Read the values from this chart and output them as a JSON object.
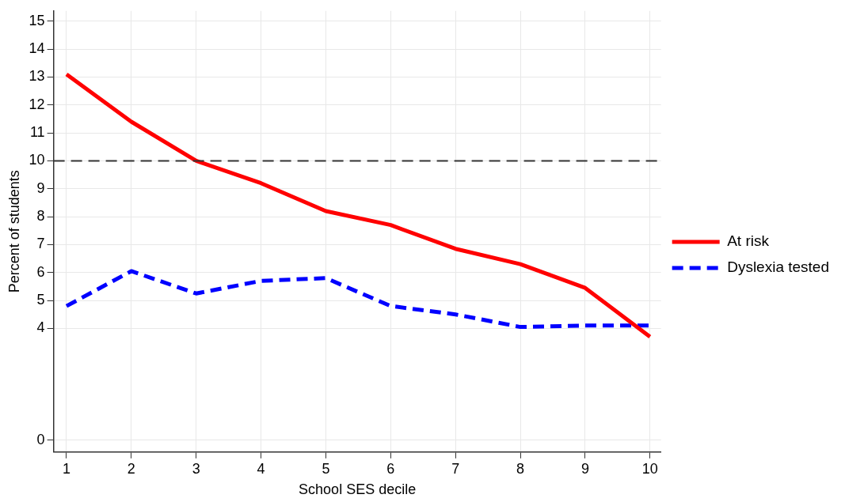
{
  "chart_data": {
    "type": "line",
    "xlabel": "School SES decile",
    "ylabel": "Percent of students",
    "x": [
      1,
      2,
      3,
      4,
      5,
      6,
      7,
      8,
      9,
      10
    ],
    "series": [
      {
        "name": "At risk",
        "color": "#ff0000",
        "line_style": "solid",
        "values": [
          13.1,
          11.4,
          10.0,
          9.2,
          8.2,
          7.7,
          6.85,
          6.3,
          5.45,
          3.7
        ]
      },
      {
        "name": "Dyslexia tested",
        "color": "#0000ff",
        "line_style": "dashed",
        "values": [
          4.8,
          6.05,
          5.25,
          5.7,
          5.8,
          4.8,
          4.5,
          4.05,
          4.1,
          4.1
        ]
      }
    ],
    "xlim": [
      0.8,
      10.17
    ],
    "xticks": [
      1,
      2,
      3,
      4,
      5,
      6,
      7,
      8,
      9,
      10
    ],
    "ylim": [
      -0.43,
      15.37
    ],
    "yticks": [
      0,
      4,
      5,
      6,
      7,
      8,
      9,
      10,
      11,
      12,
      13,
      14,
      15
    ],
    "ref_lines": [
      {
        "axis": "y",
        "value": 10,
        "color": "#333333",
        "line_style": "dashed"
      }
    ],
    "grid": true,
    "legend": "right",
    "marker": "none"
  }
}
